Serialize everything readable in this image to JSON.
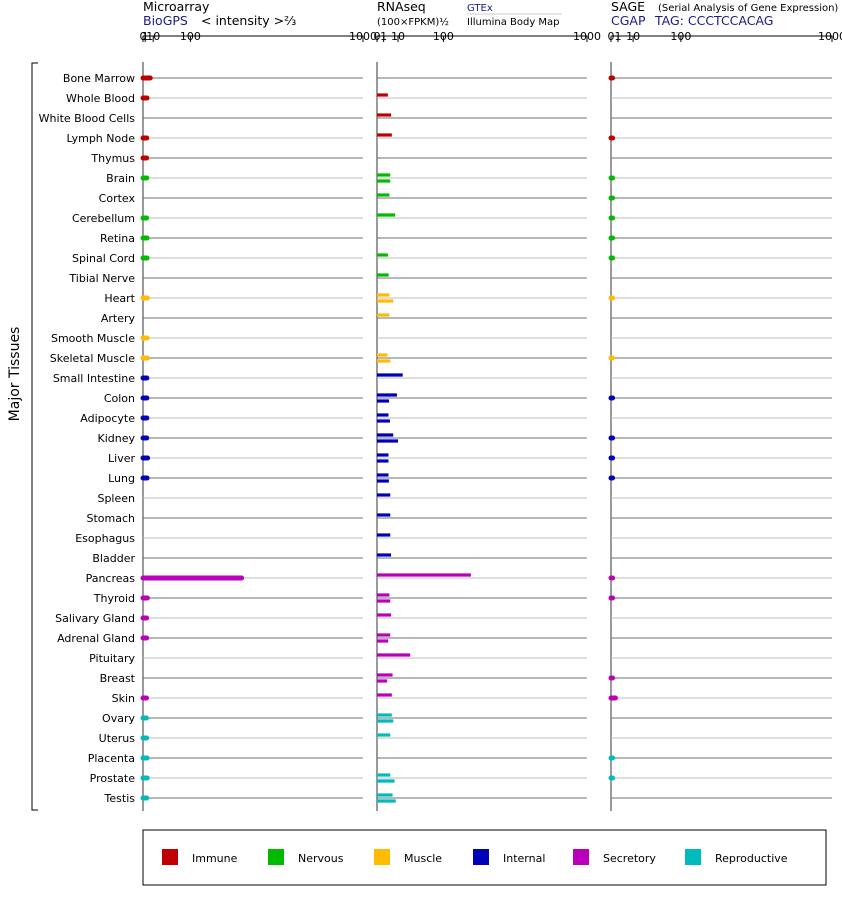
{
  "headers": {
    "microarray": {
      "title": "Microarray",
      "source": "BioGPS",
      "unit": "< intensity >⅔"
    },
    "rnaseq": {
      "title": "RNAseq",
      "unit": "(100×FPKM)½",
      "source1": "GTEx",
      "source2": "Illumina Body Map"
    },
    "sage": {
      "title": "SAGE",
      "subtitle": "(Serial Analysis of Gene Expression)",
      "source": "CGAP",
      "tag": "TAG: CCCTCCACAG"
    }
  },
  "axis_label": "Major Tissues",
  "ticks": [
    "0",
    "1",
    "10",
    "100",
    "1000"
  ],
  "legend": [
    {
      "name": "Immune",
      "color": "#c00000"
    },
    {
      "name": "Nervous",
      "color": "#00bb00"
    },
    {
      "name": "Muscle",
      "color": "#ffbb00"
    },
    {
      "name": "Internal",
      "color": "#0000bb"
    },
    {
      "name": "Secretory",
      "color": "#bb00bb"
    },
    {
      "name": "Reproductive",
      "color": "#00bbbb"
    }
  ],
  "chart_data": [
    {
      "type": "bar",
      "panel": "Microarray",
      "scale": "power 2/3",
      "xlim": [
        0,
        1000
      ],
      "categories": [
        "Bone Marrow",
        "Whole Blood",
        "White Blood Cells",
        "Lymph Node",
        "Thymus",
        "Brain",
        "Cortex",
        "Cerebellum",
        "Retina",
        "Spinal Cord",
        "Tibial Nerve",
        "Heart",
        "Artery",
        "Smooth Muscle",
        "Skeletal Muscle",
        "Small Intestine",
        "Colon",
        "Adipocyte",
        "Kidney",
        "Liver",
        "Lung",
        "Spleen",
        "Stomach",
        "Esophagus",
        "Bladder",
        "Pancreas",
        "Thyroid",
        "Salivary Gland",
        "Adrenal Gland",
        "Pituitary",
        "Breast",
        "Skin",
        "Ovary",
        "Uterus",
        "Placenta",
        "Prostate",
        "Testis"
      ],
      "groups": [
        "Immune",
        "Immune",
        "Immune",
        "Immune",
        "Immune",
        "Nervous",
        "Nervous",
        "Nervous",
        "Nervous",
        "Nervous",
        "Nervous",
        "Muscle",
        "Muscle",
        "Muscle",
        "Muscle",
        "Internal",
        "Internal",
        "Internal",
        "Internal",
        "Internal",
        "Internal",
        "Internal",
        "Internal",
        "Internal",
        "Internal",
        "Secretory",
        "Secretory",
        "Secretory",
        "Secretory",
        "Secretory",
        "Secretory",
        "Secretory",
        "Reproductive",
        "Reproductive",
        "Reproductive",
        "Reproductive",
        "Reproductive"
      ],
      "values": [
        6,
        2.5,
        null,
        2.2,
        2.1,
        2.2,
        null,
        2.1,
        2.5,
        2.5,
        null,
        2.8,
        null,
        2.6,
        2.9,
        2.3,
        2.3,
        2.3,
        2.2,
        3.0,
        2.5,
        null,
        null,
        null,
        null,
        300,
        2.8,
        2.1,
        2.1,
        null,
        null,
        2.0,
        1.9,
        2.1,
        2.5,
        2.6,
        2.2
      ]
    },
    {
      "type": "bar",
      "panel": "RNAseq",
      "scale": "power 1/2",
      "xlim": [
        0,
        1000
      ],
      "categories": [
        "Bone Marrow",
        "Whole Blood",
        "White Blood Cells",
        "Lymph Node",
        "Thymus",
        "Brain",
        "Cortex",
        "Cerebellum",
        "Retina",
        "Spinal Cord",
        "Tibial Nerve",
        "Heart",
        "Artery",
        "Smooth Muscle",
        "Skeletal Muscle",
        "Small Intestine",
        "Colon",
        "Adipocyte",
        "Kidney",
        "Liver",
        "Lung",
        "Spleen",
        "Stomach",
        "Esophagus",
        "Bladder",
        "Pancreas",
        "Thyroid",
        "Salivary Gland",
        "Adrenal Gland",
        "Pituitary",
        "Breast",
        "Skin",
        "Ovary",
        "Uterus",
        "Placenta",
        "Prostate",
        "Testis"
      ],
      "series": [
        {
          "name": "GTEx",
          "values": [
            null,
            2.7,
            4.5,
            5,
            null,
            4,
            3.5,
            7.5,
            null,
            2.7,
            3.1,
            3.5,
            3.5,
            null,
            2.5,
            15,
            9,
            3,
            6,
            3,
            3,
            4,
            4,
            4,
            4.5,
            200,
            3.5,
            4.5,
            4,
            25,
            5.5,
            5,
            5,
            4,
            null,
            4,
            5.5
          ]
        },
        {
          "name": "Illumina Body Map",
          "values": [
            null,
            null,
            null,
            null,
            null,
            4,
            null,
            null,
            null,
            null,
            null,
            6,
            null,
            null,
            4,
            null,
            3.3,
            3.8,
            10,
            3,
            3.2,
            null,
            null,
            null,
            null,
            null,
            4,
            null,
            2.8,
            null,
            2.3,
            null,
            6,
            null,
            null,
            7,
            8
          ]
        }
      ]
    },
    {
      "type": "bar",
      "panel": "SAGE",
      "scale": "power 1/2",
      "xlim": [
        0,
        1000
      ],
      "categories": [
        "Bone Marrow",
        "Whole Blood",
        "White Blood Cells",
        "Lymph Node",
        "Thymus",
        "Brain",
        "Cortex",
        "Cerebellum",
        "Retina",
        "Spinal Cord",
        "Tibial Nerve",
        "Heart",
        "Artery",
        "Smooth Muscle",
        "Skeletal Muscle",
        "Small Intestine",
        "Colon",
        "Adipocyte",
        "Kidney",
        "Liver",
        "Lung",
        "Spleen",
        "Stomach",
        "Esophagus",
        "Bladder",
        "Pancreas",
        "Thyroid",
        "Salivary Gland",
        "Adrenal Gland",
        "Pituitary",
        "Breast",
        "Skin",
        "Ovary",
        "Uterus",
        "Placenta",
        "Prostate",
        "Testis"
      ],
      "values": [
        0.05,
        null,
        null,
        0.05,
        null,
        0.05,
        0.05,
        0.05,
        0.05,
        0.05,
        null,
        0.02,
        null,
        null,
        0.02,
        null,
        0.05,
        null,
        0.05,
        0.05,
        0.05,
        null,
        null,
        null,
        null,
        0.05,
        0.05,
        null,
        null,
        null,
        0.05,
        0.4,
        null,
        null,
        0.05,
        0.05,
        null
      ]
    }
  ]
}
